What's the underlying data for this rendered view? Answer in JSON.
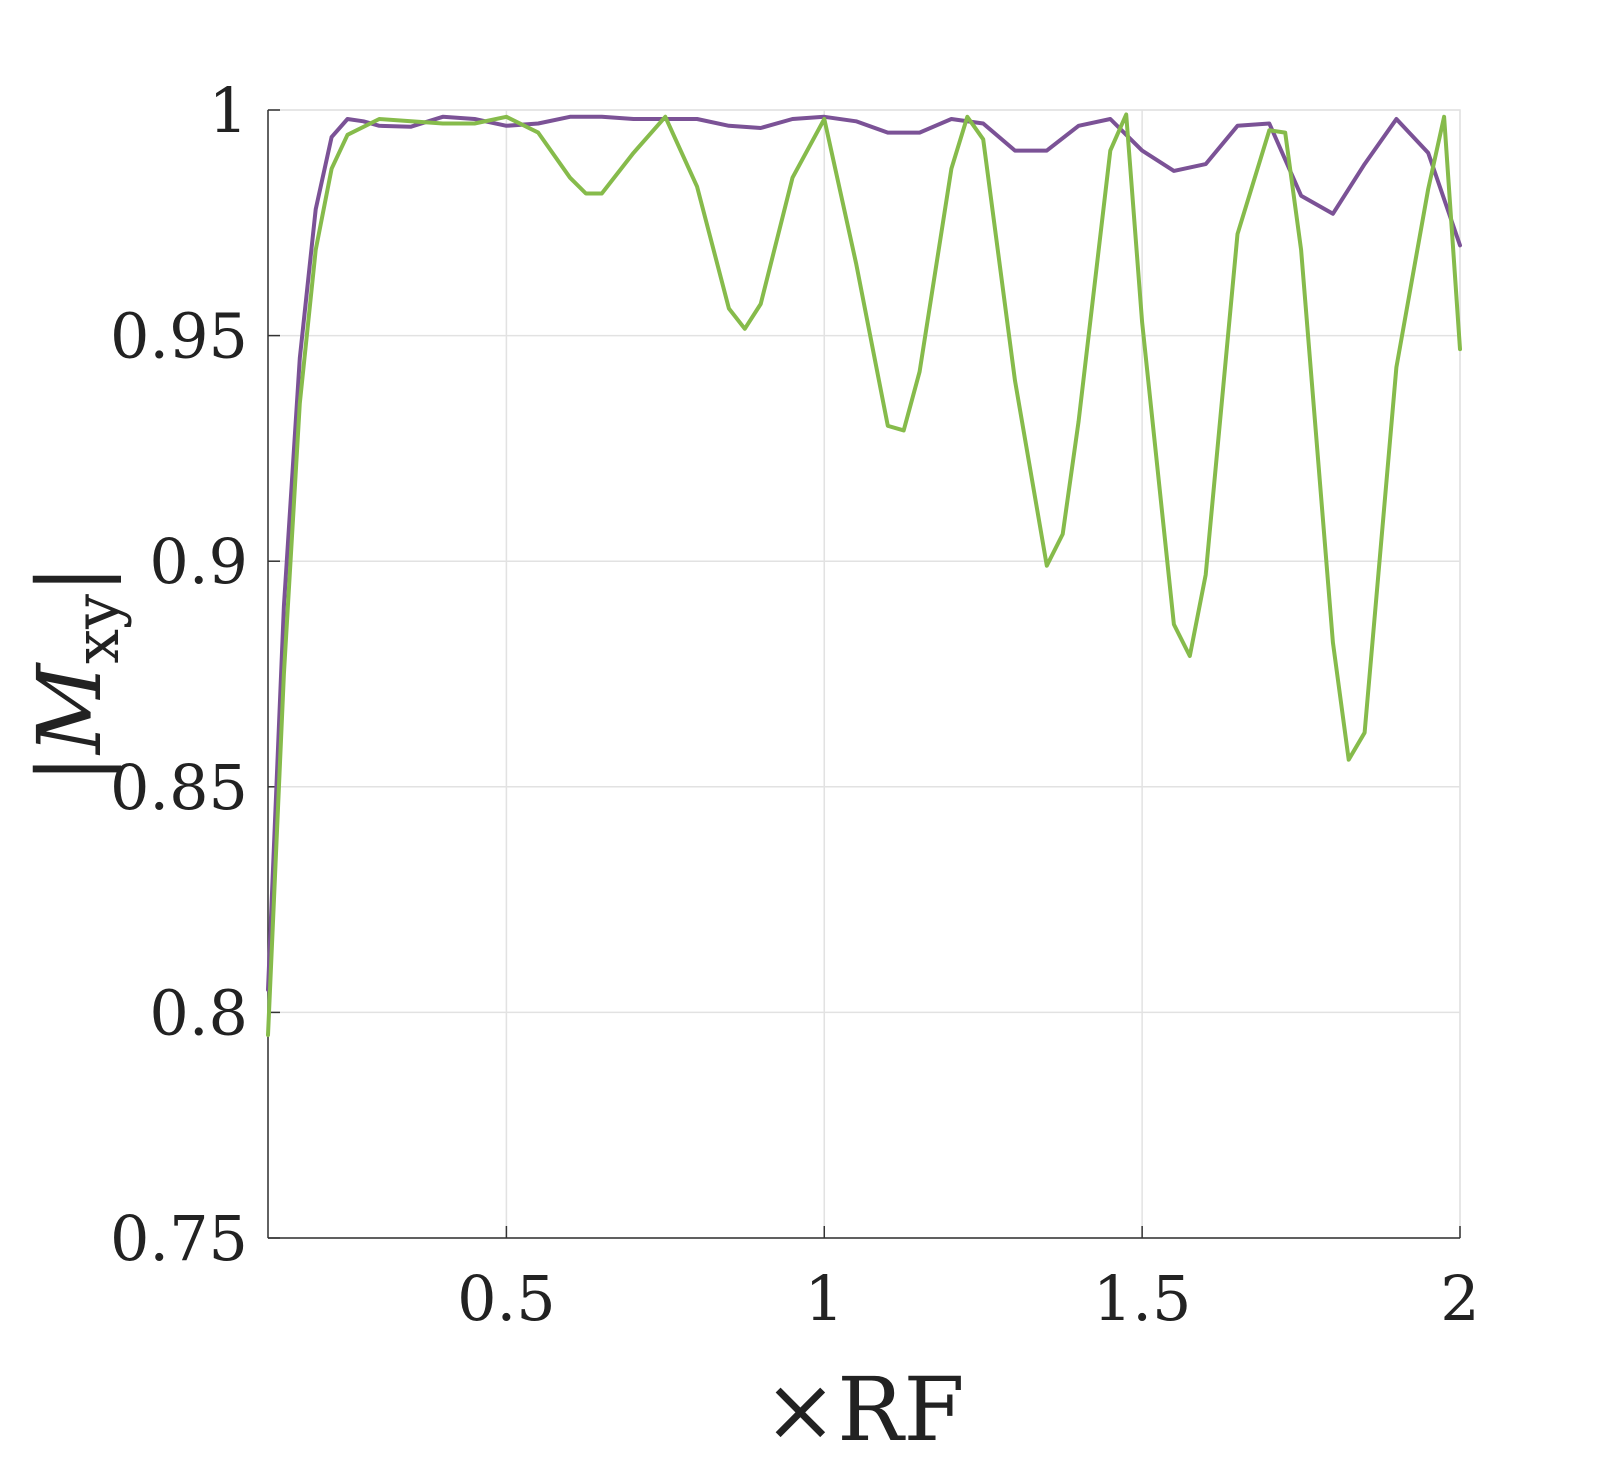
{
  "chart_data": {
    "type": "line",
    "xlabel": "×RF",
    "ylabel_main": "|M",
    "ylabel_sub": "xy",
    "ylabel_close": "|",
    "xlim": [
      0.125,
      2
    ],
    "ylim": [
      0.75,
      1
    ],
    "xticks": [
      0.5,
      1,
      1.5,
      2
    ],
    "xtick_labels": [
      "0.5",
      "1",
      "1.5",
      "2"
    ],
    "yticks": [
      0.75,
      0.8,
      0.85,
      0.9,
      0.95,
      1
    ],
    "ytick_labels": [
      "0.75",
      "0.8",
      "0.85",
      "0.9",
      "0.95",
      "1"
    ],
    "grid": true,
    "legend": "none",
    "series": [
      {
        "color": "#7b5296",
        "x": [
          0.125,
          0.15,
          0.175,
          0.2,
          0.225,
          0.25,
          0.275,
          0.3,
          0.35,
          0.4,
          0.45,
          0.5,
          0.55,
          0.6,
          0.65,
          0.7,
          0.75,
          0.8,
          0.85,
          0.9,
          0.95,
          1.0,
          1.05,
          1.1,
          1.15,
          1.2,
          1.25,
          1.3,
          1.35,
          1.4,
          1.45,
          1.5,
          1.55,
          1.6,
          1.65,
          1.7,
          1.75,
          1.8,
          1.85,
          1.9,
          1.95,
          2.0
        ],
        "y": [
          0.805,
          0.89,
          0.945,
          0.978,
          0.994,
          0.998,
          0.9975,
          0.9965,
          0.9963,
          0.9985,
          0.998,
          0.9965,
          0.997,
          0.9985,
          0.9985,
          0.998,
          0.998,
          0.998,
          0.9965,
          0.996,
          0.998,
          0.9985,
          0.9975,
          0.995,
          0.995,
          0.998,
          0.997,
          0.991,
          0.991,
          0.9965,
          0.998,
          0.991,
          0.9865,
          0.988,
          0.9965,
          0.997,
          0.981,
          0.977,
          0.988,
          0.998,
          0.9905,
          0.97
        ]
      },
      {
        "color": "#86bb4b",
        "x": [
          0.125,
          0.15,
          0.175,
          0.2,
          0.225,
          0.25,
          0.3,
          0.35,
          0.4,
          0.45,
          0.5,
          0.55,
          0.6,
          0.625,
          0.65,
          0.7,
          0.75,
          0.8,
          0.85,
          0.875,
          0.9,
          0.95,
          1.0,
          1.05,
          1.1,
          1.125,
          1.15,
          1.2,
          1.225,
          1.25,
          1.3,
          1.35,
          1.375,
          1.4,
          1.45,
          1.475,
          1.5,
          1.55,
          1.575,
          1.6,
          1.65,
          1.7,
          1.725,
          1.75,
          1.8,
          1.825,
          1.85,
          1.9,
          1.95,
          1.975,
          2.0
        ],
        "y": [
          0.795,
          0.875,
          0.935,
          0.969,
          0.987,
          0.9945,
          0.998,
          0.9975,
          0.997,
          0.997,
          0.9985,
          0.995,
          0.985,
          0.9815,
          0.9815,
          0.9905,
          0.9985,
          0.983,
          0.956,
          0.9515,
          0.957,
          0.985,
          0.998,
          0.966,
          0.93,
          0.929,
          0.942,
          0.987,
          0.9985,
          0.9935,
          0.94,
          0.899,
          0.906,
          0.931,
          0.991,
          0.999,
          0.953,
          0.886,
          0.879,
          0.897,
          0.9725,
          0.9955,
          0.995,
          0.969,
          0.882,
          0.856,
          0.862,
          0.943,
          0.9825,
          0.9985,
          0.947
        ]
      }
    ]
  }
}
